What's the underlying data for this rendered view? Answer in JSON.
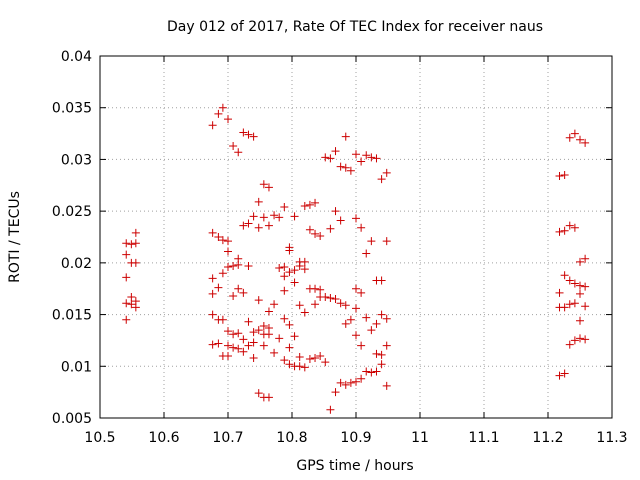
{
  "chart_data": {
    "type": "scatter",
    "title": "Day 012 of 2017, Rate Of TEC Index for receiver naus",
    "xlabel": "GPS time / hours",
    "ylabel": "ROTI / TECUs",
    "xlim": [
      10.5,
      11.3
    ],
    "ylim": [
      0.005,
      0.04
    ],
    "x_ticks": [
      "10.5",
      "10.6",
      "10.7",
      "10.8",
      "10.9",
      "11",
      "11.1",
      "11.2",
      "11.3"
    ],
    "y_ticks": [
      "0.005",
      "0.01",
      "0.015",
      "0.02",
      "0.025",
      "0.03",
      "0.035",
      "0.04"
    ],
    "grid": true,
    "marker": "+",
    "series": [
      {
        "color": "#cc0000",
        "points": [
          [
            10.541,
            0.0219
          ],
          [
            10.541,
            0.0208
          ],
          [
            10.541,
            0.0186
          ],
          [
            10.541,
            0.0161
          ],
          [
            10.541,
            0.0145
          ],
          [
            10.549,
            0.0218
          ],
          [
            10.549,
            0.02
          ],
          [
            10.549,
            0.0167
          ],
          [
            10.549,
            0.016
          ],
          [
            10.556,
            0.0229
          ],
          [
            10.556,
            0.0219
          ],
          [
            10.556,
            0.02
          ],
          [
            10.556,
            0.0163
          ],
          [
            10.556,
            0.0157
          ],
          [
            10.676,
            0.0333
          ],
          [
            10.676,
            0.0229
          ],
          [
            10.676,
            0.0185
          ],
          [
            10.676,
            0.017
          ],
          [
            10.676,
            0.015
          ],
          [
            10.676,
            0.0121
          ],
          [
            10.685,
            0.0344
          ],
          [
            10.685,
            0.0225
          ],
          [
            10.685,
            0.0176
          ],
          [
            10.685,
            0.0145
          ],
          [
            10.685,
            0.0122
          ],
          [
            10.692,
            0.035
          ],
          [
            10.692,
            0.0222
          ],
          [
            10.692,
            0.019
          ],
          [
            10.692,
            0.0145
          ],
          [
            10.692,
            0.011
          ],
          [
            10.7,
            0.0339
          ],
          [
            10.7,
            0.0221
          ],
          [
            10.7,
            0.0211
          ],
          [
            10.7,
            0.0196
          ],
          [
            10.7,
            0.0134
          ],
          [
            10.7,
            0.012
          ],
          [
            10.7,
            0.011
          ],
          [
            10.708,
            0.0313
          ],
          [
            10.708,
            0.0197
          ],
          [
            10.708,
            0.0168
          ],
          [
            10.708,
            0.0131
          ],
          [
            10.708,
            0.0118
          ],
          [
            10.716,
            0.0307
          ],
          [
            10.716,
            0.0204
          ],
          [
            10.716,
            0.0198
          ],
          [
            10.716,
            0.0175
          ],
          [
            10.716,
            0.0132
          ],
          [
            10.716,
            0.0117
          ],
          [
            10.724,
            0.0326
          ],
          [
            10.724,
            0.0236
          ],
          [
            10.724,
            0.0171
          ],
          [
            10.724,
            0.0126
          ],
          [
            10.724,
            0.0114
          ],
          [
            10.732,
            0.0324
          ],
          [
            10.732,
            0.0238
          ],
          [
            10.732,
            0.0197
          ],
          [
            10.732,
            0.0143
          ],
          [
            10.732,
            0.012
          ],
          [
            10.74,
            0.0322
          ],
          [
            10.74,
            0.0245
          ],
          [
            10.74,
            0.0133
          ],
          [
            10.74,
            0.0123
          ],
          [
            10.74,
            0.0108
          ],
          [
            10.748,
            0.0259
          ],
          [
            10.748,
            0.0234
          ],
          [
            10.748,
            0.0164
          ],
          [
            10.748,
            0.0135
          ],
          [
            10.748,
            0.0074
          ],
          [
            10.756,
            0.0276
          ],
          [
            10.756,
            0.0244
          ],
          [
            10.756,
            0.0139
          ],
          [
            10.756,
            0.0131
          ],
          [
            10.756,
            0.012
          ],
          [
            10.756,
            0.007
          ],
          [
            10.764,
            0.0273
          ],
          [
            10.764,
            0.0236
          ],
          [
            10.764,
            0.0153
          ],
          [
            10.764,
            0.0137
          ],
          [
            10.764,
            0.0131
          ],
          [
            10.764,
            0.007
          ],
          [
            10.772,
            0.0246
          ],
          [
            10.772,
            0.016
          ],
          [
            10.772,
            0.0113
          ],
          [
            10.78,
            0.0244
          ],
          [
            10.78,
            0.0195
          ],
          [
            10.78,
            0.0127
          ],
          [
            10.788,
            0.0254
          ],
          [
            10.788,
            0.0196
          ],
          [
            10.788,
            0.0187
          ],
          [
            10.788,
            0.0173
          ],
          [
            10.788,
            0.0146
          ],
          [
            10.788,
            0.0106
          ],
          [
            10.796,
            0.0215
          ],
          [
            10.796,
            0.0212
          ],
          [
            10.796,
            0.0191
          ],
          [
            10.796,
            0.014
          ],
          [
            10.796,
            0.0118
          ],
          [
            10.796,
            0.0102
          ],
          [
            10.804,
            0.0245
          ],
          [
            10.804,
            0.0193
          ],
          [
            10.804,
            0.0181
          ],
          [
            10.804,
            0.0129
          ],
          [
            10.804,
            0.01
          ],
          [
            10.812,
            0.0201
          ],
          [
            10.812,
            0.0197
          ],
          [
            10.812,
            0.0159
          ],
          [
            10.812,
            0.0109
          ],
          [
            10.812,
            0.01
          ],
          [
            10.82,
            0.0255
          ],
          [
            10.82,
            0.0201
          ],
          [
            10.82,
            0.0194
          ],
          [
            10.82,
            0.0152
          ],
          [
            10.82,
            0.0099
          ],
          [
            10.828,
            0.0256
          ],
          [
            10.828,
            0.0232
          ],
          [
            10.828,
            0.0175
          ],
          [
            10.828,
            0.0107
          ],
          [
            10.836,
            0.0258
          ],
          [
            10.836,
            0.0228
          ],
          [
            10.836,
            0.0175
          ],
          [
            10.836,
            0.016
          ],
          [
            10.836,
            0.0108
          ],
          [
            10.844,
            0.0226
          ],
          [
            10.844,
            0.0174
          ],
          [
            10.844,
            0.0167
          ],
          [
            10.844,
            0.011
          ],
          [
            10.852,
            0.0302
          ],
          [
            10.852,
            0.0167
          ],
          [
            10.852,
            0.0104
          ],
          [
            10.86,
            0.0301
          ],
          [
            10.86,
            0.0233
          ],
          [
            10.86,
            0.0166
          ],
          [
            10.86,
            0.0058
          ],
          [
            10.868,
            0.0308
          ],
          [
            10.868,
            0.025
          ],
          [
            10.868,
            0.0165
          ],
          [
            10.868,
            0.0075
          ],
          [
            10.876,
            0.0293
          ],
          [
            10.876,
            0.0241
          ],
          [
            10.876,
            0.0161
          ],
          [
            10.876,
            0.0084
          ],
          [
            10.884,
            0.0322
          ],
          [
            10.884,
            0.0292
          ],
          [
            10.884,
            0.0159
          ],
          [
            10.884,
            0.0141
          ],
          [
            10.884,
            0.0082
          ],
          [
            10.892,
            0.0289
          ],
          [
            10.892,
            0.0145
          ],
          [
            10.892,
            0.0084
          ],
          [
            10.9,
            0.0305
          ],
          [
            10.9,
            0.0243
          ],
          [
            10.9,
            0.0175
          ],
          [
            10.9,
            0.0156
          ],
          [
            10.9,
            0.013
          ],
          [
            10.9,
            0.0085
          ],
          [
            10.908,
            0.0298
          ],
          [
            10.908,
            0.0234
          ],
          [
            10.908,
            0.0171
          ],
          [
            10.908,
            0.012
          ],
          [
            10.908,
            0.0088
          ],
          [
            10.916,
            0.0304
          ],
          [
            10.916,
            0.0209
          ],
          [
            10.916,
            0.0147
          ],
          [
            10.916,
            0.0095
          ],
          [
            10.924,
            0.0302
          ],
          [
            10.924,
            0.0221
          ],
          [
            10.924,
            0.0135
          ],
          [
            10.924,
            0.0094
          ],
          [
            10.932,
            0.0301
          ],
          [
            10.932,
            0.0183
          ],
          [
            10.932,
            0.0141
          ],
          [
            10.932,
            0.0112
          ],
          [
            10.932,
            0.0095
          ],
          [
            10.94,
            0.0281
          ],
          [
            10.94,
            0.0183
          ],
          [
            10.94,
            0.015
          ],
          [
            10.94,
            0.0111
          ],
          [
            10.94,
            0.0102
          ],
          [
            10.948,
            0.0287
          ],
          [
            10.948,
            0.0221
          ],
          [
            10.948,
            0.0146
          ],
          [
            10.948,
            0.012
          ],
          [
            10.948,
            0.0081
          ],
          [
            11.218,
            0.0284
          ],
          [
            11.218,
            0.023
          ],
          [
            11.218,
            0.0171
          ],
          [
            11.218,
            0.0157
          ],
          [
            11.218,
            0.0091
          ],
          [
            11.226,
            0.0285
          ],
          [
            11.226,
            0.0231
          ],
          [
            11.226,
            0.0188
          ],
          [
            11.226,
            0.0157
          ],
          [
            11.226,
            0.0093
          ],
          [
            11.234,
            0.0321
          ],
          [
            11.234,
            0.0236
          ],
          [
            11.234,
            0.0183
          ],
          [
            11.234,
            0.016
          ],
          [
            11.234,
            0.0121
          ],
          [
            11.242,
            0.0325
          ],
          [
            11.242,
            0.0234
          ],
          [
            11.242,
            0.018
          ],
          [
            11.242,
            0.0161
          ],
          [
            11.242,
            0.0125
          ],
          [
            11.25,
            0.0319
          ],
          [
            11.25,
            0.0201
          ],
          [
            11.25,
            0.0178
          ],
          [
            11.25,
            0.017
          ],
          [
            11.25,
            0.0144
          ],
          [
            11.25,
            0.0127
          ],
          [
            11.258,
            0.0316
          ],
          [
            11.258,
            0.0204
          ],
          [
            11.258,
            0.0177
          ],
          [
            11.258,
            0.0158
          ],
          [
            11.258,
            0.0126
          ]
        ]
      }
    ]
  }
}
